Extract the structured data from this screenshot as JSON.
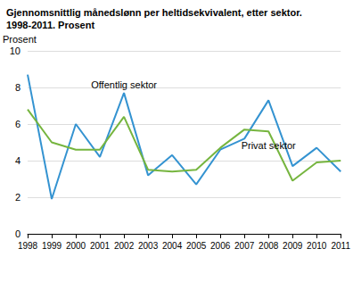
{
  "chart_data": {
    "type": "line",
    "title": "Gjennomsnittlig månedslønn per heltidsekvivalent, etter sektor.\n1998-2011. Prosent",
    "y_label": "Prosent",
    "categories": [
      "1998",
      "1999",
      "2000",
      "2001",
      "2002",
      "2003",
      "2004",
      "2005",
      "2006",
      "2007",
      "2008",
      "2009",
      "2010",
      "2011"
    ],
    "series": [
      {
        "name": "Offentlig sektor",
        "color": "#3493d1",
        "values": [
          8.7,
          1.9,
          6.0,
          4.2,
          7.7,
          3.2,
          4.3,
          2.7,
          4.6,
          5.2,
          7.3,
          3.7,
          4.7,
          3.4
        ]
      },
      {
        "name": "Privat sektor",
        "color": "#76b53f",
        "values": [
          6.8,
          5.0,
          4.6,
          4.6,
          6.4,
          3.5,
          3.4,
          3.5,
          4.7,
          5.7,
          5.6,
          2.9,
          3.9,
          4.0
        ]
      }
    ],
    "ylim": [
      0,
      10
    ],
    "yticks": [
      0,
      2,
      4,
      6,
      8,
      10
    ],
    "grid": true
  }
}
